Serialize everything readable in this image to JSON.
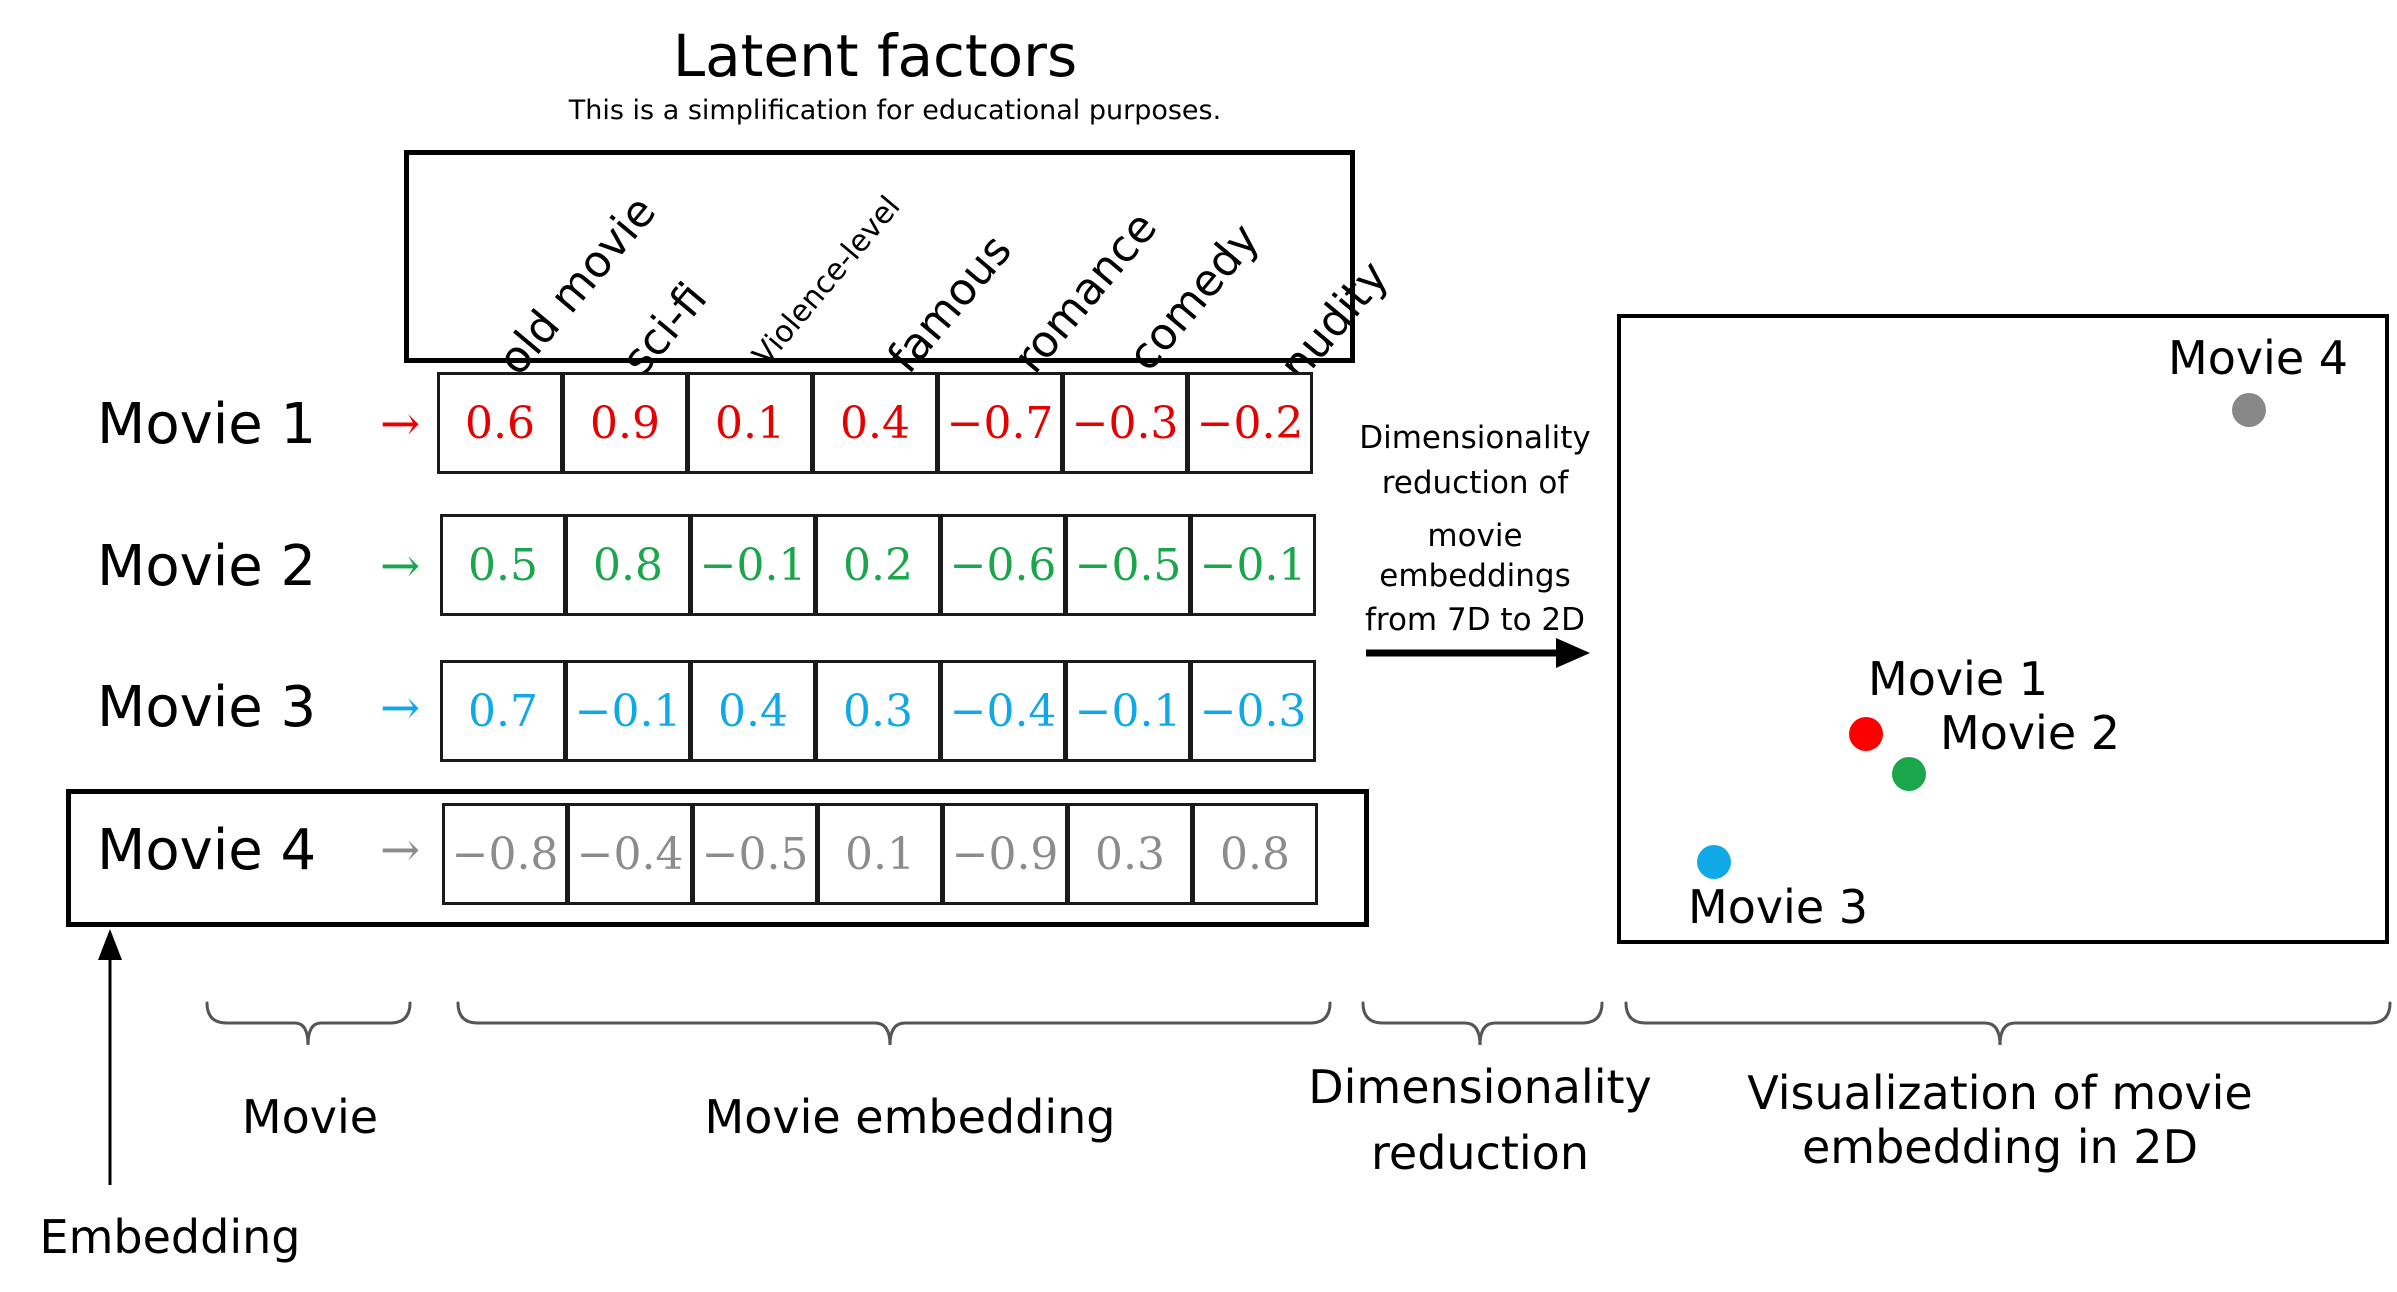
{
  "title": "Latent factors",
  "subtitle": "This is a simplification for educational purposes.",
  "factors": [
    "old movie",
    "sci-fi",
    "Violence-level",
    "famous",
    "romance",
    "comedy",
    "nudity"
  ],
  "movies": [
    {
      "name": "Movie 1",
      "arrow": "→",
      "color": "#e60000",
      "values": [
        "0.6",
        "0.9",
        "0.1",
        "0.4",
        "−0.7",
        "−0.3",
        "−0.2"
      ]
    },
    {
      "name": "Movie 2",
      "arrow": "→",
      "color": "#1aa64a",
      "values": [
        "0.5",
        "0.8",
        "−0.1",
        "0.2",
        "−0.6",
        "−0.5",
        "−0.1"
      ]
    },
    {
      "name": "Movie 3",
      "arrow": "→",
      "color": "#10a9e8",
      "values": [
        "0.7",
        "−0.1",
        "0.4",
        "0.3",
        "−0.4",
        "−0.1",
        "−0.3"
      ]
    },
    {
      "name": "Movie 4",
      "arrow": "→",
      "color": "#8c8c8c",
      "values": [
        "−0.8",
        "−0.4",
        "−0.5",
        "0.1",
        "−0.9",
        "0.3",
        "0.8"
      ]
    }
  ],
  "dim_reduction_text": [
    "Dimensionality",
    "reduction of",
    "movie",
    "embeddings",
    "from 7D to 2D"
  ],
  "plot_points": [
    {
      "label": "Movie 1",
      "color": "#ff0000"
    },
    {
      "label": "Movie 2",
      "color": "#1aa64a"
    },
    {
      "label": "Movie 3",
      "color": "#10a9e8"
    },
    {
      "label": "Movie 4",
      "color": "#888888"
    }
  ],
  "braces": {
    "movie": "Movie",
    "embedding": "Movie embedding",
    "dimred_line1": "Dimensionality",
    "dimred_line2": "reduction",
    "viz_line1": "Visualization of movie",
    "viz_line2": "embedding in 2D"
  },
  "embedding_label": "Embedding"
}
